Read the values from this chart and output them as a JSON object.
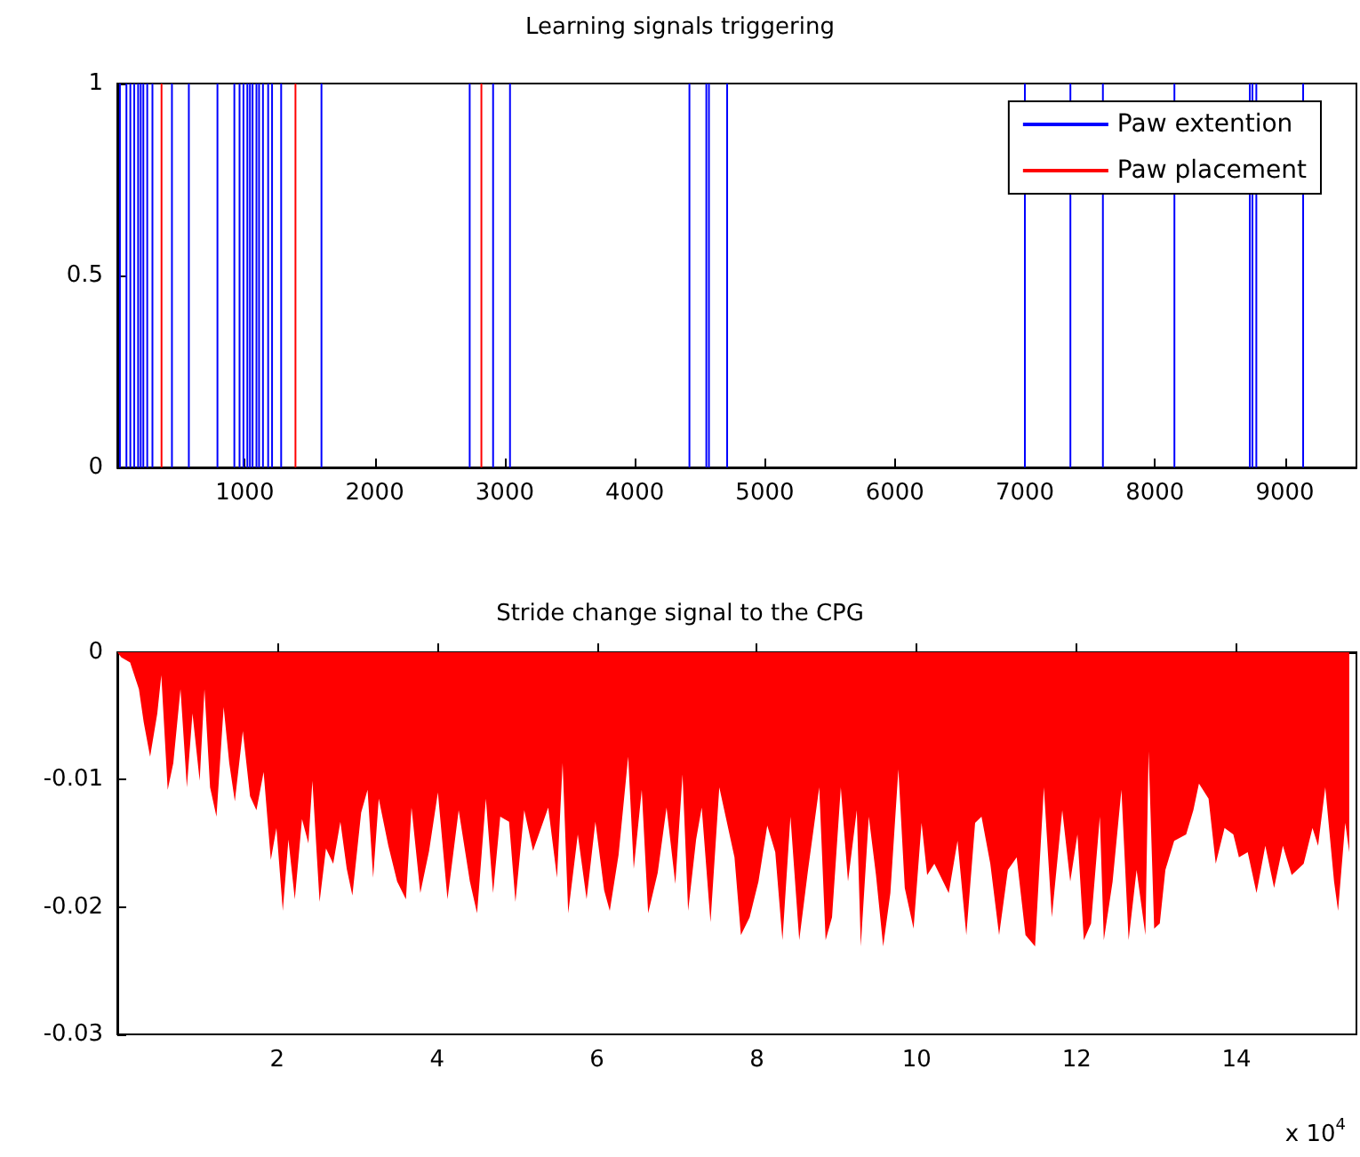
{
  "chart_data": [
    {
      "type": "bar",
      "title": "Learning signals triggering",
      "xlim": [
        20,
        9550
      ],
      "ylim": [
        0,
        1
      ],
      "xticks": [
        1000,
        2000,
        3000,
        4000,
        5000,
        6000,
        7000,
        8000,
        9000
      ],
      "yticks": [
        0,
        0.5,
        1
      ],
      "legend": "top right",
      "series": [
        {
          "name": "Paw extention",
          "color": "#0000ff",
          "x": [
            40,
            90,
            120,
            150,
            180,
            200,
            220,
            250,
            290,
            440,
            570,
            790,
            920,
            960,
            990,
            1020,
            1040,
            1060,
            1090,
            1110,
            1140,
            1180,
            1210,
            1280,
            1590,
            2730,
            2910,
            3040,
            4420,
            4550,
            4570,
            4710,
            7000,
            7350,
            7600,
            8150,
            8730,
            8750,
            8780,
            9140
          ],
          "values": [
            1,
            1,
            1,
            1,
            1,
            1,
            1,
            1,
            1,
            1,
            1,
            1,
            1,
            1,
            1,
            1,
            1,
            1,
            1,
            1,
            1,
            1,
            1,
            1,
            1,
            1,
            1,
            1,
            1,
            1,
            1,
            1,
            1,
            1,
            1,
            1,
            1,
            1,
            1,
            1
          ]
        },
        {
          "name": "Paw placement",
          "color": "#ff0000",
          "x": [
            360,
            1390,
            2820
          ],
          "values": [
            1,
            1,
            1
          ]
        }
      ]
    },
    {
      "type": "area",
      "title": "Stride change signal to the CPG",
      "xlim": [
        0,
        15.5
      ],
      "ylim": [
        -0.03,
        0
      ],
      "xticks": [
        2,
        4,
        6,
        8,
        10,
        12,
        14
      ],
      "yticks": [
        -0.03,
        -0.02,
        -0.01,
        0
      ],
      "annotations": [
        "x 10$^{4}$"
      ],
      "series": [
        {
          "color": "#ff0000",
          "x": [
            0,
            0.05,
            0.16,
            0.27,
            0.33,
            0.41,
            0.5,
            0.55,
            0.63,
            0.7,
            0.79,
            0.87,
            0.94,
            1.03,
            1.09,
            1.16,
            1.24,
            1.33,
            1.4,
            1.47,
            1.57,
            1.66,
            1.74,
            1.83,
            1.92,
            1.99,
            2.07,
            2.14,
            2.22,
            2.31,
            2.39,
            2.44,
            2.53,
            2.61,
            2.7,
            2.79,
            2.87,
            2.94,
            3.05,
            3.13,
            3.2,
            3.27,
            3.39,
            3.5,
            3.61,
            3.68,
            3.79,
            3.9,
            4.01,
            4.13,
            4.27,
            4.41,
            4.5,
            4.61,
            4.7,
            4.79,
            4.9,
            4.98,
            5.09,
            5.2,
            5.39,
            5.5,
            5.57,
            5.64,
            5.76,
            5.87,
            5.98,
            6.09,
            6.16,
            6.27,
            6.39,
            6.46,
            6.56,
            6.64,
            6.76,
            6.87,
            6.98,
            7.07,
            7.14,
            7.24,
            7.31,
            7.42,
            7.53,
            7.72,
            7.8,
            7.91,
            8.02,
            8.13,
            8.23,
            8.32,
            8.42,
            8.53,
            8.64,
            8.78,
            8.86,
            8.94,
            9.05,
            9.14,
            9.25,
            9.3,
            9.4,
            9.49,
            9.58,
            9.67,
            9.77,
            9.85,
            9.96,
            10.06,
            10.13,
            10.22,
            10.29,
            10.4,
            10.51,
            10.62,
            10.73,
            10.81,
            10.92,
            11.03,
            11.14,
            11.25,
            11.36,
            11.48,
            11.59,
            11.69,
            11.82,
            11.92,
            12.01,
            12.09,
            12.18,
            12.29,
            12.34,
            12.45,
            12.56,
            12.65,
            12.75,
            12.86,
            12.9,
            12.97,
            13.04,
            13.11,
            13.22,
            13.37,
            13.46,
            13.53,
            13.65,
            13.74,
            13.85,
            13.96,
            14.03,
            14.14,
            14.25,
            14.36,
            14.47,
            14.58,
            14.69,
            14.84,
            14.95,
            15.02,
            15.11,
            15.22,
            15.27,
            15.36,
            15.41
          ],
          "values": [
            0,
            -0.0004,
            -0.0008,
            -0.0029,
            -0.0055,
            -0.0082,
            -0.0048,
            -0.0018,
            -0.0108,
            -0.0087,
            -0.0029,
            -0.0106,
            -0.0048,
            -0.0101,
            -0.0029,
            -0.0106,
            -0.0129,
            -0.0043,
            -0.0087,
            -0.0117,
            -0.0062,
            -0.0113,
            -0.0124,
            -0.0094,
            -0.0163,
            -0.0138,
            -0.0203,
            -0.0147,
            -0.0194,
            -0.0131,
            -0.015,
            -0.0101,
            -0.0196,
            -0.0154,
            -0.0166,
            -0.0133,
            -0.017,
            -0.0191,
            -0.0126,
            -0.0108,
            -0.0177,
            -0.0115,
            -0.0152,
            -0.018,
            -0.0194,
            -0.0122,
            -0.0189,
            -0.0156,
            -0.011,
            -0.0194,
            -0.0124,
            -0.018,
            -0.0205,
            -0.0115,
            -0.0189,
            -0.0129,
            -0.0133,
            -0.0196,
            -0.0124,
            -0.0156,
            -0.0122,
            -0.0177,
            -0.0087,
            -0.0205,
            -0.0143,
            -0.0194,
            -0.0133,
            -0.0187,
            -0.0203,
            -0.0159,
            -0.0082,
            -0.017,
            -0.0108,
            -0.0205,
            -0.0173,
            -0.0122,
            -0.0182,
            -0.0096,
            -0.0203,
            -0.0147,
            -0.0122,
            -0.0212,
            -0.0106,
            -0.0161,
            -0.0222,
            -0.0208,
            -0.018,
            -0.0136,
            -0.0157,
            -0.0226,
            -0.0129,
            -0.0226,
            -0.0171,
            -0.0106,
            -0.0226,
            -0.0208,
            -0.0106,
            -0.018,
            -0.0124,
            -0.0231,
            -0.0129,
            -0.0175,
            -0.0231,
            -0.0189,
            -0.0092,
            -0.0185,
            -0.0217,
            -0.0134,
            -0.0175,
            -0.0166,
            -0.0175,
            -0.0189,
            -0.0148,
            -0.0222,
            -0.0134,
            -0.0129,
            -0.0166,
            -0.0222,
            -0.0171,
            -0.0161,
            -0.0222,
            -0.0231,
            -0.0106,
            -0.0208,
            -0.0124,
            -0.018,
            -0.0143,
            -0.0226,
            -0.0213,
            -0.0129,
            -0.0226,
            -0.018,
            -0.0108,
            -0.0226,
            -0.0171,
            -0.0222,
            -0.0078,
            -0.0217,
            -0.0213,
            -0.0171,
            -0.0148,
            -0.0143,
            -0.0124,
            -0.0103,
            -0.0115,
            -0.0166,
            -0.0138,
            -0.0143,
            -0.0161,
            -0.0157,
            -0.0189,
            -0.0152,
            -0.0185,
            -0.0152,
            -0.0175,
            -0.0166,
            -0.0138,
            -0.0152,
            -0.0106,
            -0.018,
            -0.0203,
            -0.0134,
            -0.0157
          ]
        }
      ]
    }
  ]
}
